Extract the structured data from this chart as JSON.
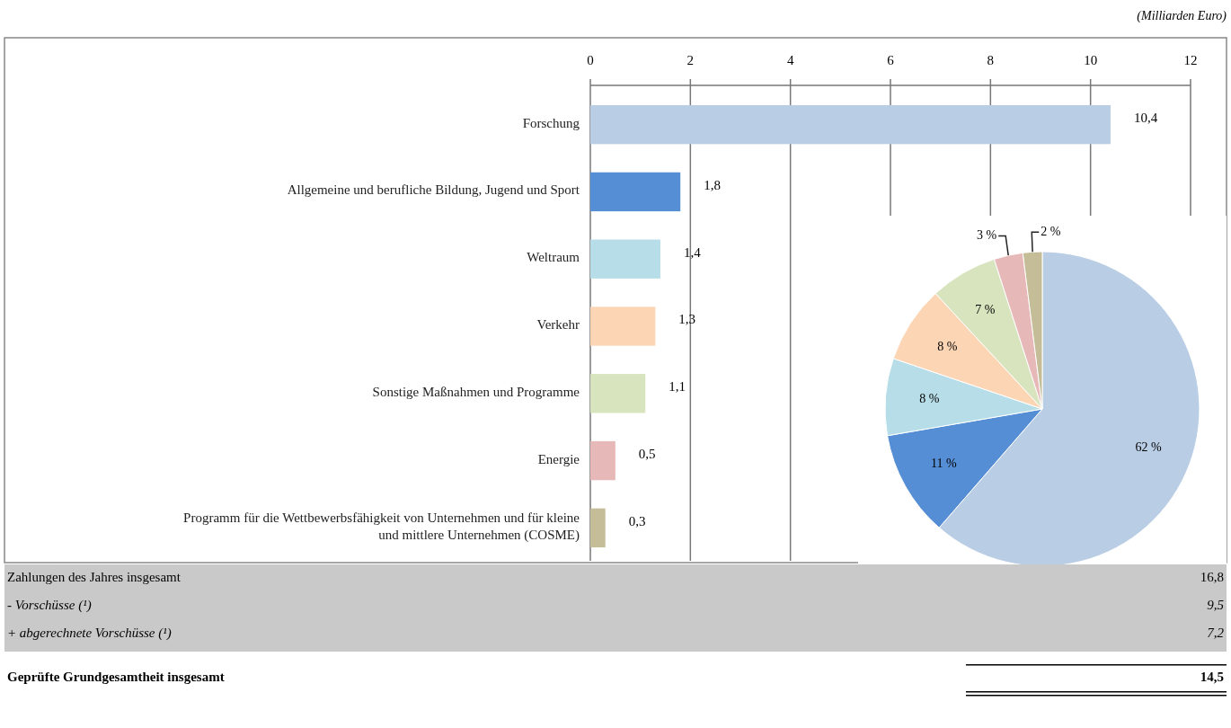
{
  "chart_data": [
    {
      "type": "bar",
      "orientation": "horizontal",
      "subtitle": "(Milliarden Euro)",
      "categories": [
        "Forschung",
        "Allgemeine und berufliche Bildung, Jugend und Sport",
        "Weltraum",
        "Verkehr",
        "Sonstige Maßnahmen und Programme",
        "Energie",
        "Programm für die Wettbewerbsfähigkeit von Unternehmen und für kleine und mittlere Unternehmen (COSME)"
      ],
      "values": [
        10.4,
        1.8,
        1.4,
        1.3,
        1.1,
        0.5,
        0.3
      ],
      "colors": [
        "#b9cde5",
        "#558ed5",
        "#b7dee8",
        "#fcd5b5",
        "#d7e4bd",
        "#e6b9b8",
        "#c4bd97"
      ],
      "value_labels": [
        "10,4",
        "1,8",
        "1,4",
        "1,3",
        "1,1",
        "0,5",
        "0,3"
      ],
      "xlim": [
        0,
        12
      ],
      "xticks": [
        0,
        2,
        4,
        6,
        8,
        10,
        12
      ],
      "grid": "x"
    },
    {
      "type": "pie",
      "categories": [
        null,
        null,
        null,
        null,
        null,
        null,
        null
      ],
      "values": [
        62,
        11,
        8,
        8,
        7,
        3,
        2
      ],
      "colors": [
        "#b9cde5",
        "#558ed5",
        "#b7dee8",
        "#fcd5b5",
        "#d7e4bd",
        "#e6b9b8",
        "#c4bd97"
      ],
      "value_labels": [
        "62 %",
        "11 %",
        "8 %",
        "8 %",
        "7 %",
        "3 %",
        "2 %"
      ]
    },
    {
      "type": "other",
      "annotations": [
        "Zahlungen des Jahres insgesamt",
        "16,8",
        "- Vorschüsse (¹)",
        "9,5",
        "+ abgerechnete Vorschüsse (¹)",
        "7,2",
        "Geprüfte Grundgesamtheit insgesamt",
        "14,5"
      ]
    }
  ]
}
